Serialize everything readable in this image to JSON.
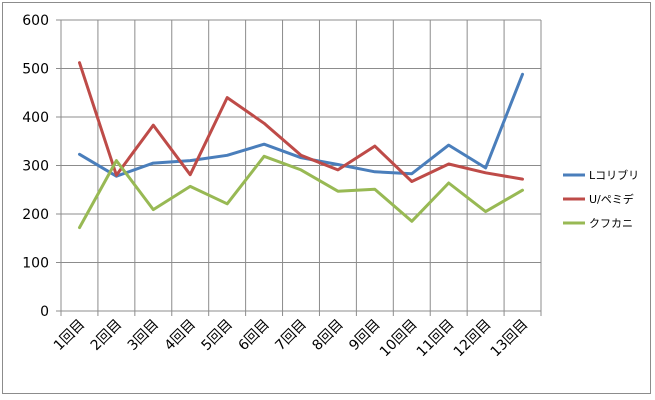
{
  "chart_data": {
    "type": "line",
    "categories": [
      "1回目",
      "2回目",
      "3回目",
      "4回目",
      "5回目",
      "6回目",
      "7回目",
      "8回目",
      "9回目",
      "10回目",
      "11回目",
      "12回目",
      "13回目"
    ],
    "series": [
      {
        "name": "Lコリブリ",
        "color": "#4a7ebb",
        "values": [
          323,
          278,
          305,
          310,
          321,
          344,
          316,
          302,
          287,
          283,
          342,
          295,
          488
        ]
      },
      {
        "name": "U/ペミデ",
        "color": "#be4b48",
        "values": [
          512,
          280,
          383,
          281,
          440,
          387,
          321,
          291,
          340,
          267,
          303,
          285,
          272
        ]
      },
      {
        "name": "クフカニ",
        "color": "#98b954",
        "values": [
          172,
          310,
          209,
          257,
          221,
          319,
          291,
          247,
          251,
          185,
          264,
          205,
          249
        ]
      }
    ],
    "ylim": [
      0,
      600
    ],
    "yticks": [
      "0",
      "100",
      "200",
      "300",
      "400",
      "500",
      "600"
    ],
    "grid": true,
    "legend_position": "right"
  }
}
